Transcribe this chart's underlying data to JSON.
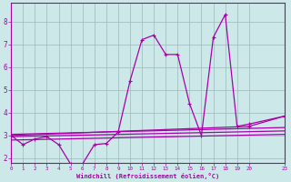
{
  "xlabel": "Windchill (Refroidissement éolien,°C)",
  "background_color": "#cce8e8",
  "line_color": "#aa00aa",
  "grid_color": "#99bbbb",
  "xlim": [
    0,
    23
  ],
  "ylim": [
    1.8,
    8.8
  ],
  "xticks": [
    0,
    1,
    2,
    3,
    4,
    5,
    6,
    7,
    8,
    9,
    10,
    11,
    12,
    13,
    14,
    15,
    16,
    17,
    18,
    19,
    20,
    23
  ],
  "yticks": [
    2,
    3,
    4,
    5,
    6,
    7,
    8
  ],
  "main_x": [
    0,
    1,
    2,
    3,
    4,
    5,
    6,
    7,
    8,
    9,
    10,
    11,
    12,
    13,
    14,
    15,
    16,
    17,
    18,
    19,
    20,
    23
  ],
  "main_y": [
    3.0,
    2.6,
    2.85,
    2.95,
    2.6,
    1.75,
    1.75,
    2.6,
    2.65,
    3.15,
    5.4,
    7.2,
    7.4,
    6.55,
    6.55,
    4.4,
    3.0,
    7.3,
    8.3,
    3.4,
    3.5,
    3.85
  ],
  "line2_x": [
    0,
    20,
    23
  ],
  "line2_y": [
    3.0,
    3.4,
    3.85
  ],
  "line3_x": [
    0,
    23
  ],
  "line3_y": [
    3.05,
    3.35
  ],
  "line4_x": [
    0,
    23
  ],
  "line4_y": [
    2.95,
    3.2
  ],
  "line5_x": [
    0,
    23
  ],
  "line5_y": [
    2.8,
    3.05
  ],
  "xlabel_fontsize": 5.0,
  "tick_fontsize_x": 4.2,
  "tick_fontsize_y": 5.5
}
